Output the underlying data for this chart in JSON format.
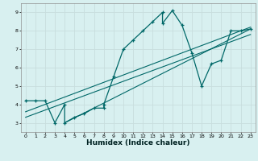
{
  "xlabel": "Humidex (Indice chaleur)",
  "bg_color": "#d8f0f0",
  "grid_color": "#c8dede",
  "line_color": "#006868",
  "xlim": [
    -0.5,
    23.5
  ],
  "ylim": [
    2.5,
    9.5
  ],
  "xticks": [
    0,
    1,
    2,
    3,
    4,
    5,
    6,
    7,
    8,
    9,
    10,
    11,
    12,
    13,
    14,
    15,
    16,
    17,
    18,
    19,
    20,
    21,
    22,
    23
  ],
  "yticks": [
    3,
    4,
    5,
    6,
    7,
    8,
    9
  ],
  "curve_x": [
    0,
    1,
    2,
    3,
    4,
    4,
    5,
    6,
    7,
    8,
    8,
    9,
    10,
    11,
    12,
    13,
    14,
    14,
    15,
    16,
    17,
    18,
    19,
    20,
    21,
    22,
    23
  ],
  "curve_y": [
    4.2,
    4.2,
    4.2,
    3.0,
    4.0,
    3.0,
    3.3,
    3.5,
    3.8,
    3.8,
    4.0,
    5.5,
    7.0,
    7.5,
    8.0,
    8.5,
    9.0,
    8.4,
    9.1,
    8.3,
    6.8,
    5.0,
    6.2,
    6.4,
    8.0,
    8.0,
    8.1
  ],
  "line1_x": [
    0,
    23
  ],
  "line1_y": [
    3.3,
    7.8
  ],
  "line2_x": [
    0,
    23
  ],
  "line2_y": [
    3.6,
    8.2
  ],
  "line3_x": [
    4,
    23
  ],
  "line3_y": [
    3.0,
    8.1
  ]
}
